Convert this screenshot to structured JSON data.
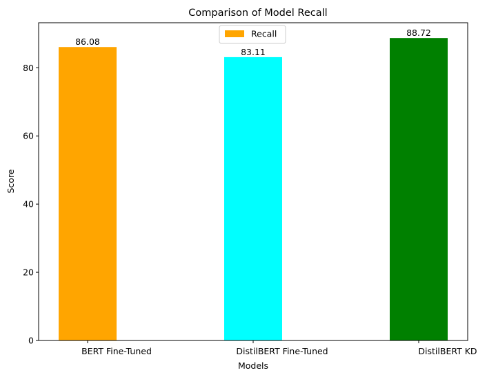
{
  "chart_data": {
    "type": "bar",
    "title": "Comparison of Model Recall",
    "xlabel": "Models",
    "ylabel": "Score",
    "categories": [
      "BERT Fine-Tuned",
      "DistilBERT Fine-Tuned",
      "DistilBERT KD"
    ],
    "series": [
      {
        "name": "Recall",
        "values": [
          86.08,
          83.11,
          88.72
        ],
        "value_labels": [
          "86.08",
          "83.11",
          "88.72"
        ],
        "colors": [
          "#ffa500",
          "#00ffff",
          "#008000"
        ]
      }
    ],
    "ylim": [
      0,
      93.2
    ],
    "yticks": [
      0,
      20,
      40,
      60,
      80
    ],
    "grid": false,
    "legend": {
      "position": "top-center",
      "color": "#ffa500"
    }
  }
}
